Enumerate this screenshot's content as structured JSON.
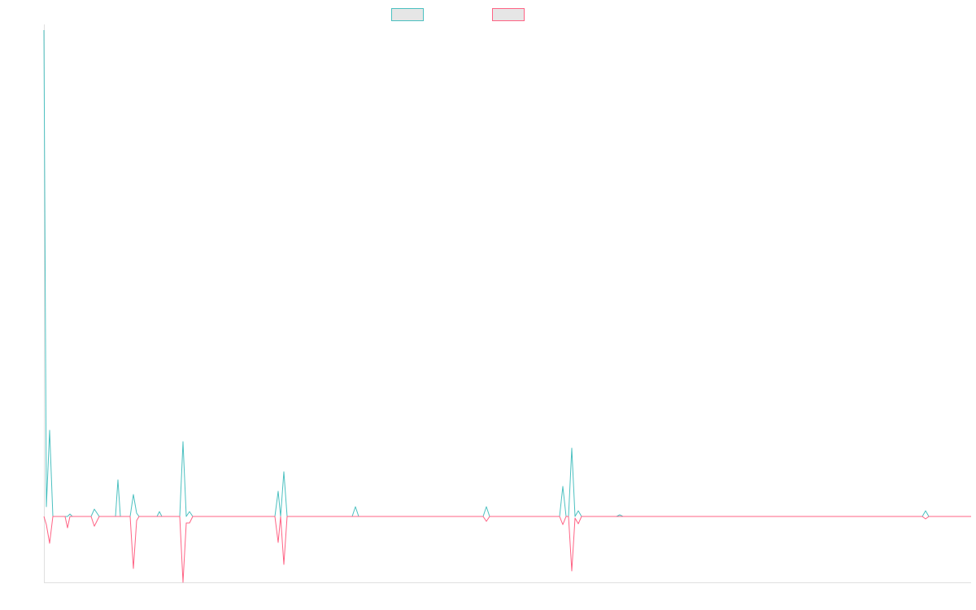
{
  "chart_data": {
    "type": "line",
    "x": [
      0,
      3,
      7,
      11,
      26,
      29,
      32,
      35,
      58,
      62,
      68,
      88,
      91,
      94,
      106,
      110,
      114,
      117,
      139,
      142,
      145,
      167,
      171,
      175,
      179,
      183,
      284,
      288,
      291,
      295,
      299,
      379,
      383,
      387,
      540,
      544,
      548,
      634,
      638,
      642,
      645,
      649,
      653,
      657,
      661,
      704,
      708,
      712,
      1080,
      1084,
      1088,
      1140
    ],
    "series": [
      {
        "color": "#4bc0c0",
        "values": [
          598,
          12,
          106,
          0,
          0,
          0,
          3,
          0,
          0,
          9,
          0,
          0,
          45,
          0,
          0,
          27,
          4,
          0,
          0,
          6,
          0,
          0,
          92,
          0,
          6,
          0,
          0,
          31,
          0,
          55,
          0,
          0,
          12,
          0,
          0,
          12,
          0,
          0,
          37,
          0,
          0,
          84,
          0,
          7,
          0,
          0,
          2,
          0,
          0,
          7,
          0,
          0
        ]
      },
      {
        "color": "#ff6384",
        "values": [
          0,
          -10,
          -33,
          0,
          0,
          -14,
          0,
          0,
          0,
          -12,
          0,
          0,
          0,
          0,
          0,
          -64,
          -5,
          0,
          0,
          0,
          0,
          0,
          -81,
          -8,
          -8,
          0,
          0,
          -32,
          0,
          -59,
          0,
          0,
          0,
          0,
          0,
          -6,
          0,
          0,
          -10,
          0,
          0,
          -67,
          -2,
          -9,
          0,
          0,
          0,
          0,
          0,
          -3,
          0,
          0
        ]
      }
    ],
    "xlim": [
      0,
      1140
    ],
    "ylim": [
      -81,
      598
    ],
    "legend": "top"
  }
}
